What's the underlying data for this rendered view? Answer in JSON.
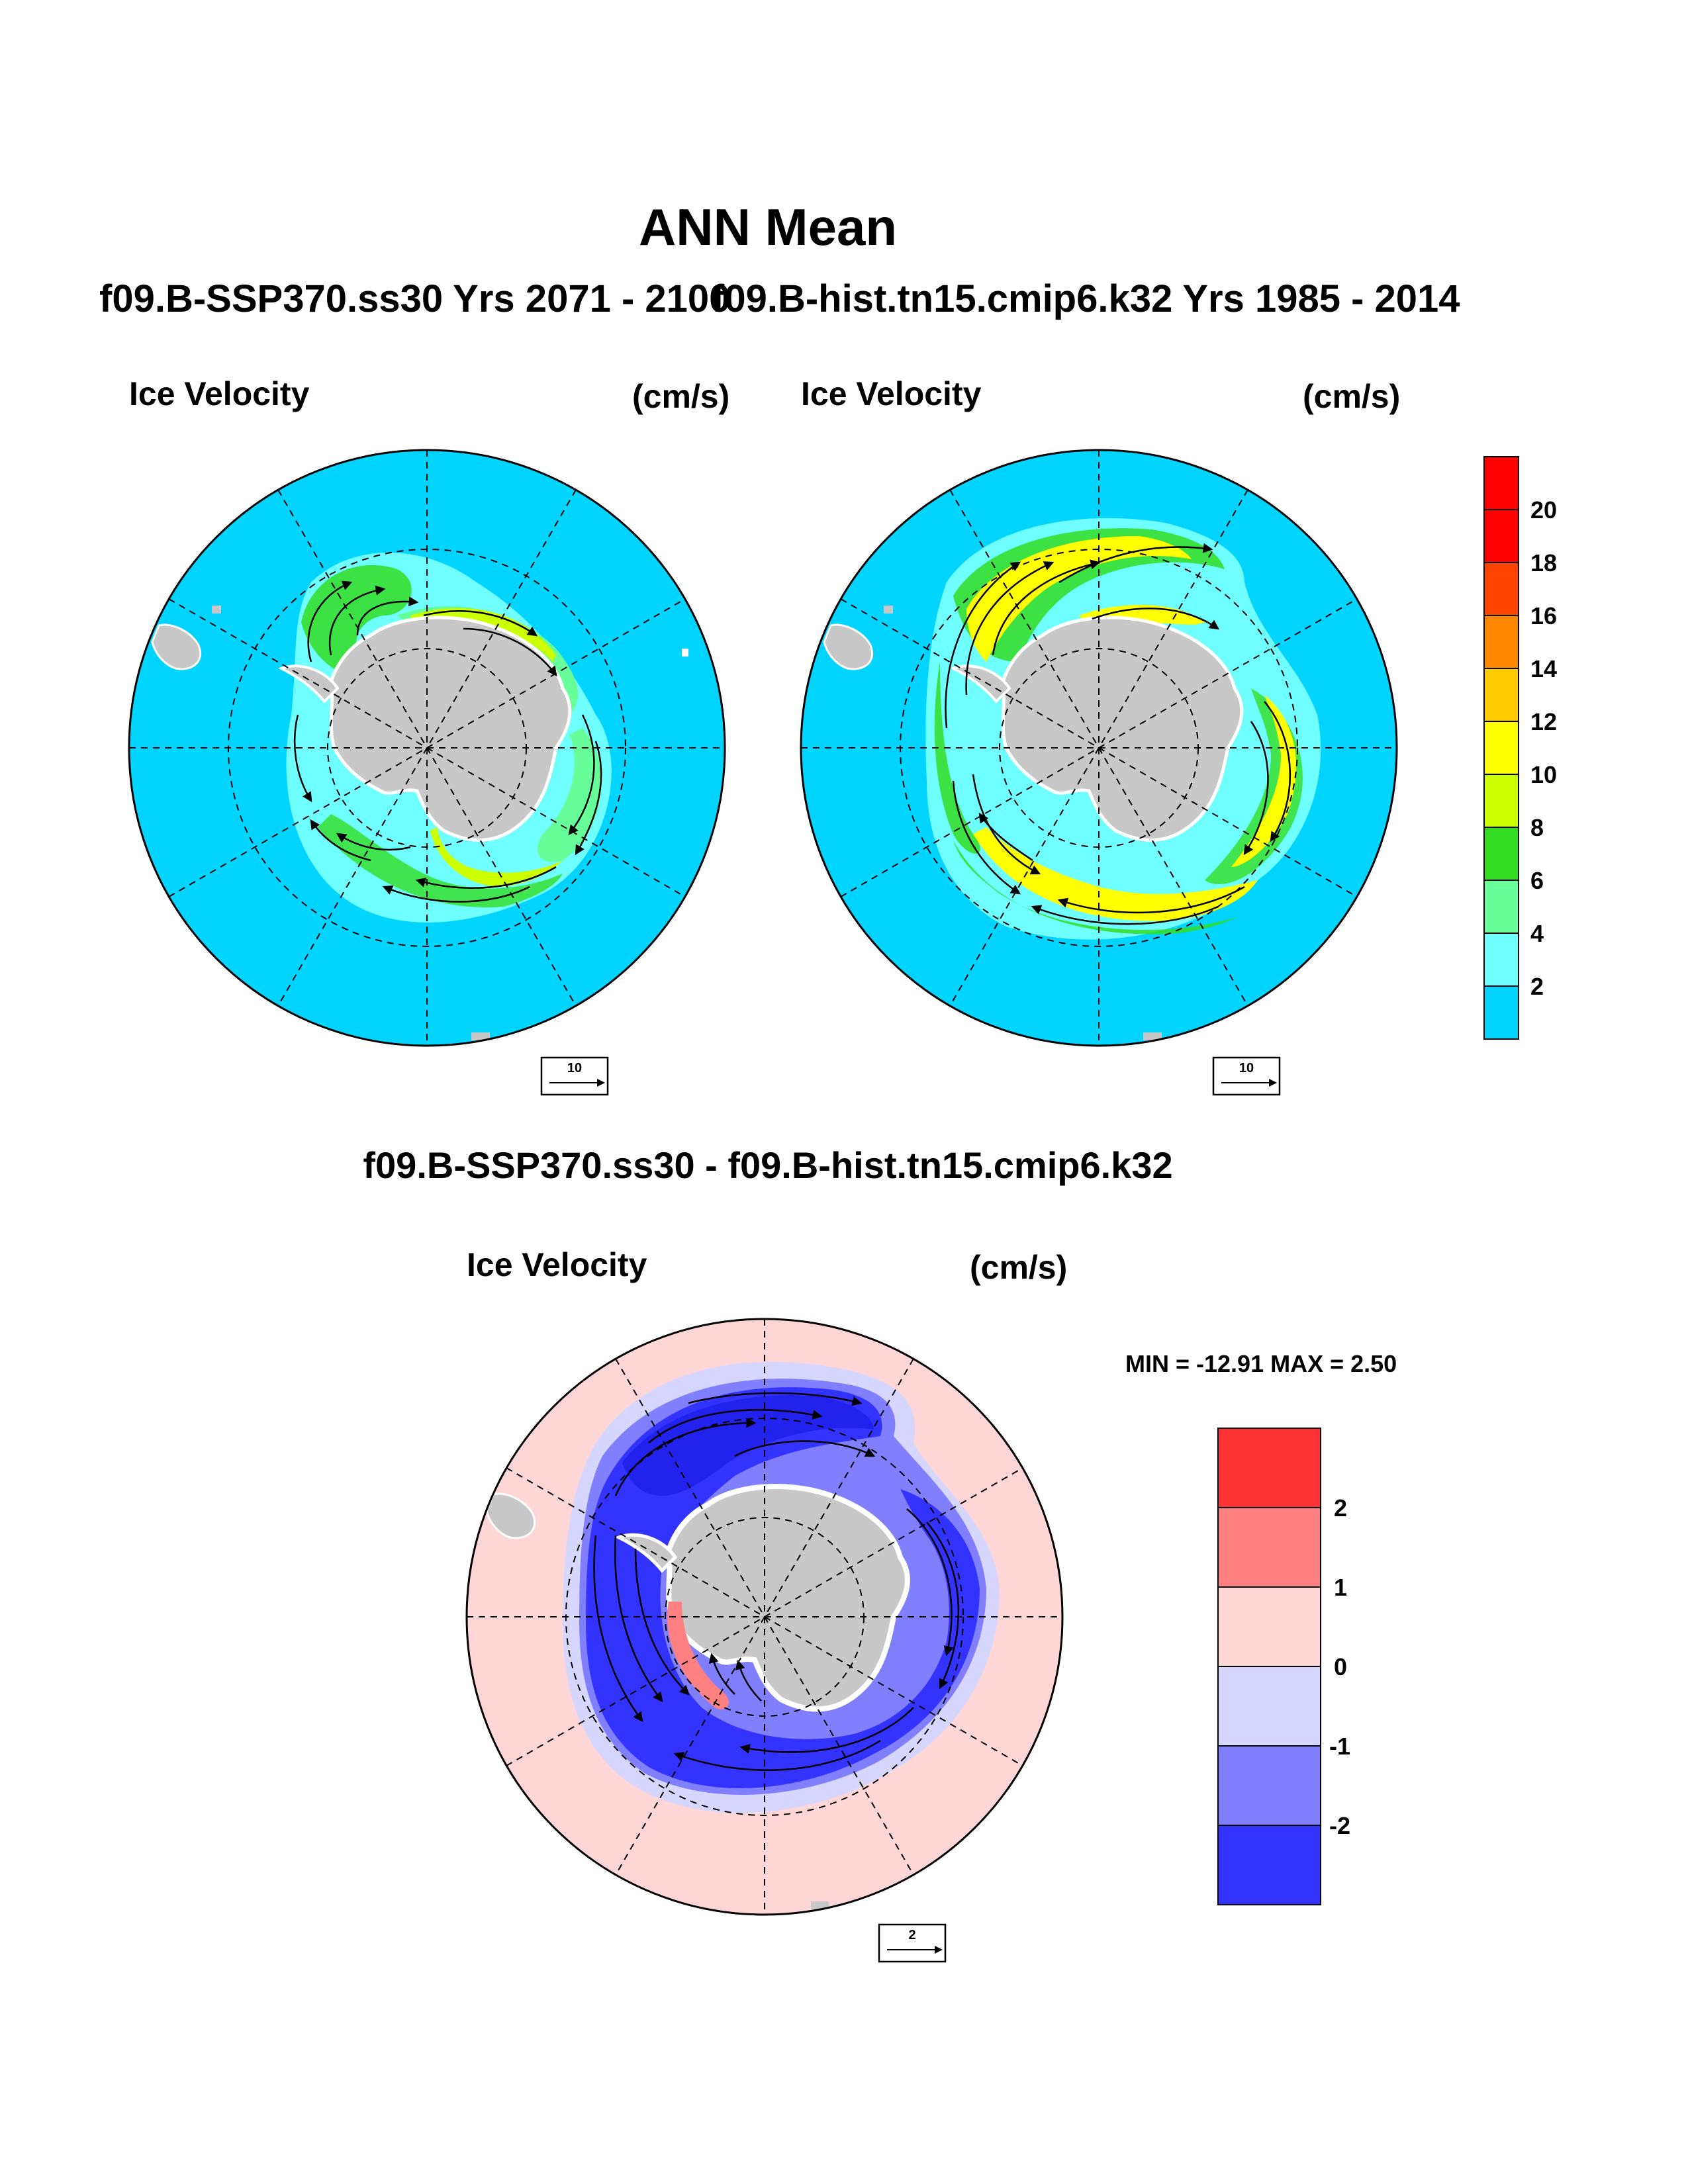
{
  "title": "ANN Mean",
  "panels": [
    {
      "case": "f09.B-SSP370.ss30  Yrs 2071 - 2100",
      "variable": "Ice Velocity",
      "units": "(cm/s)",
      "ref_vector": "10"
    },
    {
      "case": "f09.B-hist.tn15.cmip6.k32  Yrs 1985 - 2014",
      "variable": "Ice Velocity",
      "units": "(cm/s)",
      "ref_vector": "10"
    }
  ],
  "diff": {
    "title": "f09.B-SSP370.ss30 - f09.B-hist.tn15.cmip6.k32",
    "variable": "Ice Velocity",
    "units": "(cm/s)",
    "minmax": "MIN = -12.91 MAX =   2.50",
    "ref_vector": "2"
  },
  "colorbar_main": {
    "labels": [
      "2",
      "4",
      "6",
      "8",
      "10",
      "12",
      "14",
      "16",
      "18",
      "20"
    ],
    "colors": [
      "#00d4ff",
      "#70ffff",
      "#66ff99",
      "#33dd22",
      "#ccff00",
      "#ffff00",
      "#ffcc00",
      "#ff8800",
      "#ff4400",
      "#ff0000"
    ]
  },
  "colorbar_diff": {
    "labels": [
      "2",
      "1",
      "0",
      "-1",
      "-2"
    ],
    "colors": [
      "#ff3333",
      "#ff8080",
      "#ffd6d6",
      "#d6d6ff",
      "#8080ff",
      "#3333ff"
    ]
  },
  "colors": {
    "ocean": "#00d4ff",
    "land": "#c8c8c8",
    "diff_background": "#ffd6d6"
  }
}
